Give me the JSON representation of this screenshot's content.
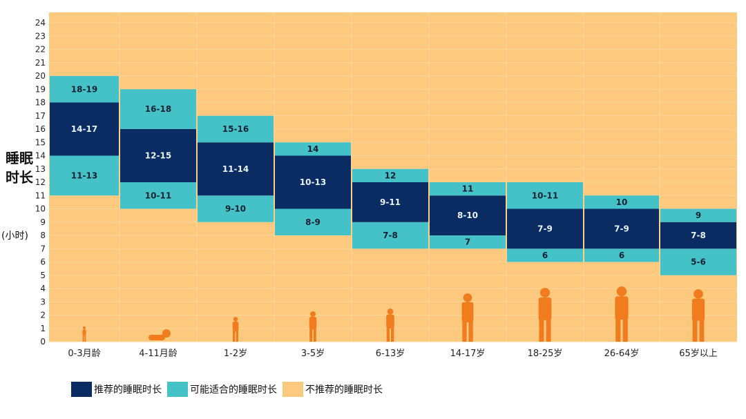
{
  "chart_data": {
    "type": "bar",
    "title": "",
    "ylabel": "睡眠时长",
    "yunit": "(小时)",
    "ylim": [
      0,
      24
    ],
    "yticks": [
      0,
      1,
      2,
      3,
      4,
      5,
      6,
      7,
      8,
      9,
      10,
      11,
      12,
      13,
      14,
      15,
      16,
      17,
      18,
      19,
      20,
      21,
      22,
      23,
      24
    ],
    "grid": true,
    "legend_position": "bottom",
    "categories": [
      "0-3月龄",
      "4-11月龄",
      "1-2岁",
      "3-5岁",
      "6-13岁",
      "14-17岁",
      "18-25岁",
      "26-64岁",
      "65岁以上"
    ],
    "series": [
      {
        "name": "推荐的睡眠时长",
        "color": "#0a2c63",
        "ranges": [
          [
            14,
            18
          ],
          [
            12,
            16
          ],
          [
            11,
            15
          ],
          [
            10,
            14
          ],
          [
            9,
            12
          ],
          [
            8,
            11
          ],
          [
            7,
            10
          ],
          [
            7,
            10
          ],
          [
            7,
            9
          ]
        ],
        "labels": [
          "14-17",
          "12-15",
          "11-14",
          "10-13",
          "9-11",
          "8-10",
          "7-9",
          "7-9",
          "7-8"
        ]
      },
      {
        "name": "可能适合的睡眠时长",
        "color": "#45c1c8",
        "ranges_low": [
          [
            11,
            14
          ],
          [
            10,
            12
          ],
          [
            9,
            11
          ],
          [
            8,
            10
          ],
          [
            7,
            9
          ],
          [
            7,
            8
          ],
          [
            6,
            7
          ],
          [
            6,
            7
          ],
          [
            5,
            7
          ]
        ],
        "labels_low": [
          "11-13",
          "10-11",
          "9-10",
          "8-9",
          "7-8",
          "7",
          "6",
          "6",
          "5-6"
        ],
        "ranges_high": [
          [
            18,
            20
          ],
          [
            16,
            19
          ],
          [
            15,
            17
          ],
          [
            14,
            15
          ],
          [
            12,
            13
          ],
          [
            11,
            12
          ],
          [
            10,
            12
          ],
          [
            10,
            11
          ],
          [
            9,
            10
          ]
        ],
        "labels_high": [
          "18-19",
          "16-18",
          "15-16",
          "14",
          "12",
          "11",
          "10-11",
          "10",
          "9"
        ]
      },
      {
        "name": "不推荐的睡眠时长",
        "color": "#fdc97e"
      }
    ],
    "figure_color": "#f07c1e"
  }
}
